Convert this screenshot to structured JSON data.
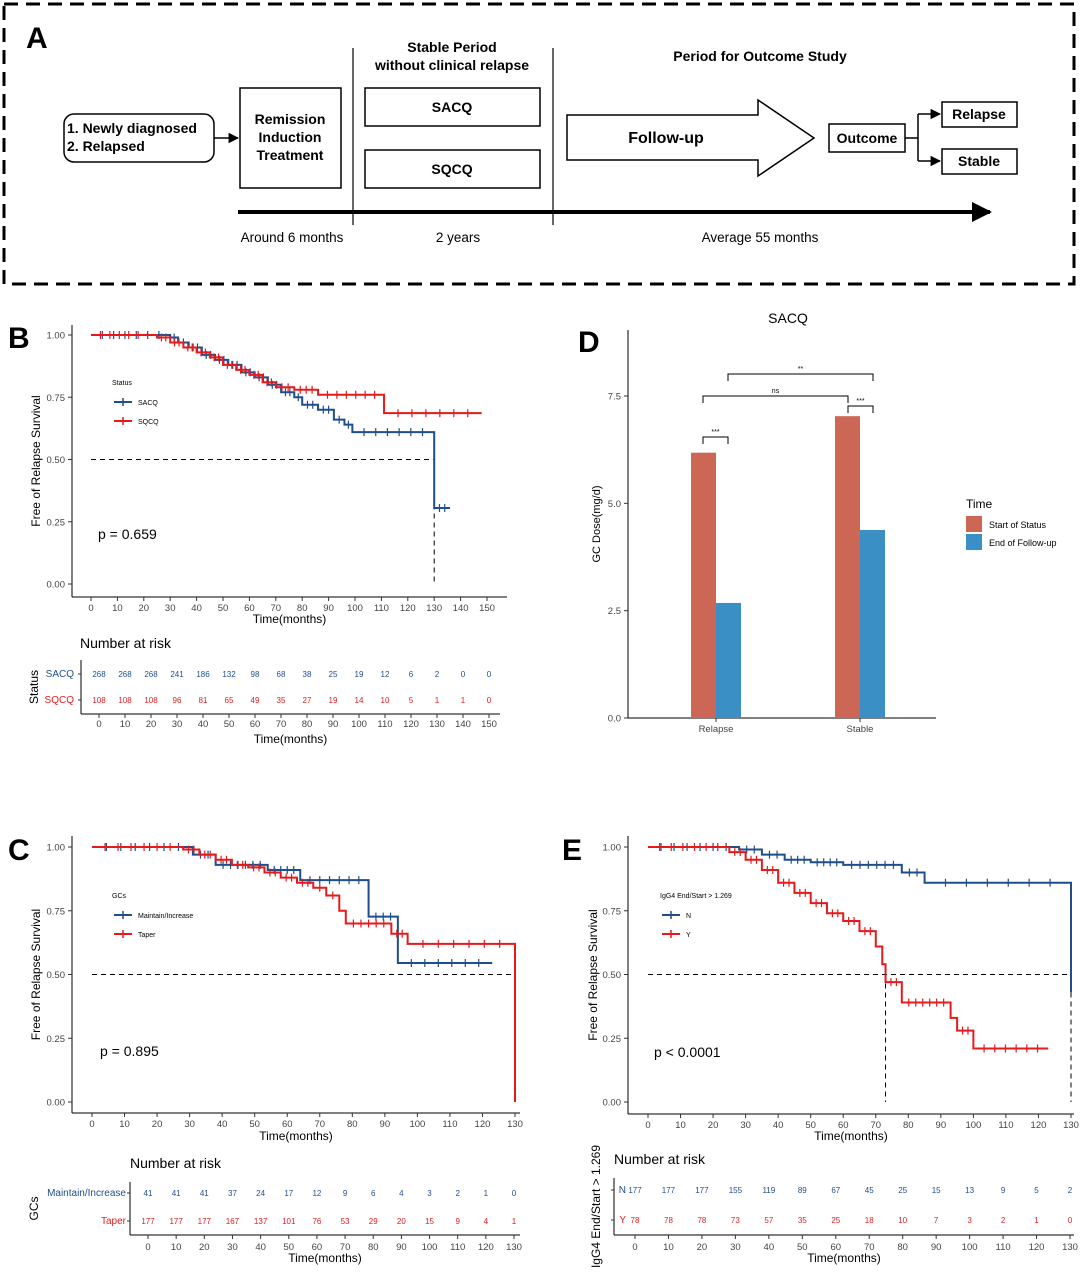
{
  "panelA": {
    "letter": "A",
    "start_line1": "1. Newly diagnosed",
    "start_line2": "2. Relapsed",
    "induction_line1": "Remission",
    "induction_line2": "Induction",
    "induction_line3": "Treatment",
    "stable_head1": "Stable Period",
    "stable_head2": "without clinical relapse",
    "sacq_box": "SACQ",
    "sqcq_box": "SQCQ",
    "outcome_head": "Period for Outcome Study",
    "followup": "Follow-up",
    "outcome": "Outcome",
    "relapse": "Relapse",
    "stable": "Stable",
    "time1": "Around 6 months",
    "time2": "2 years",
    "time3": "Average 55 months"
  },
  "chart_data": [
    {
      "id": "B",
      "type": "line",
      "letter": "B",
      "xlabel": "Time(months)",
      "ylabel": "Free of Relapse Survival",
      "xlim": [
        0,
        150
      ],
      "ylim": [
        0,
        1
      ],
      "xticks": [
        "0",
        "10",
        "20",
        "30",
        "40",
        "50",
        "60",
        "70",
        "80",
        "90",
        "100",
        "110",
        "120",
        "130",
        "140",
        "150"
      ],
      "yticks": [
        "0.00",
        "0.25",
        "0.50",
        "0.75",
        "1.00"
      ],
      "legend_title": "Status",
      "pvalue": "p = 0.659",
      "series": [
        {
          "name": "SACQ",
          "color": "#1f4e8c",
          "steps": [
            [
              0,
              1
            ],
            [
              30,
              0.99
            ],
            [
              33,
              0.97
            ],
            [
              37,
              0.95
            ],
            [
              42,
              0.92
            ],
            [
              47,
              0.9
            ],
            [
              52,
              0.88
            ],
            [
              57,
              0.85
            ],
            [
              62,
              0.83
            ],
            [
              67,
              0.8
            ],
            [
              72,
              0.77
            ],
            [
              77,
              0.75
            ],
            [
              80,
              0.72
            ],
            [
              86,
              0.7
            ],
            [
              92,
              0.66
            ],
            [
              96,
              0.64
            ],
            [
              99,
              0.61
            ],
            [
              130,
              0.61
            ],
            [
              130,
              0.305
            ],
            [
              136,
              0.305
            ]
          ]
        },
        {
          "name": "SQCQ",
          "color": "#e41a1c",
          "steps": [
            [
              0,
              1
            ],
            [
              25,
              0.99
            ],
            [
              30,
              0.97
            ],
            [
              35,
              0.95
            ],
            [
              40,
              0.93
            ],
            [
              45,
              0.91
            ],
            [
              50,
              0.88
            ],
            [
              55,
              0.86
            ],
            [
              60,
              0.84
            ],
            [
              65,
              0.81
            ],
            [
              70,
              0.79
            ],
            [
              77,
              0.78
            ],
            [
              86,
              0.76
            ],
            [
              111,
              0.76
            ],
            [
              111,
              0.686
            ],
            [
              148,
              0.686
            ]
          ]
        }
      ],
      "median_line": {
        "y": 0.5,
        "x": 130
      },
      "risk_title": "Number at risk",
      "risk_label": "Status",
      "risk_rows": [
        {
          "name": "SACQ",
          "color": "#1f4e8c",
          "values": [
            "268",
            "268",
            "268",
            "241",
            "186",
            "132",
            "98",
            "68",
            "38",
            "25",
            "19",
            "12",
            "6",
            "2",
            "0",
            "0"
          ]
        },
        {
          "name": "SQCQ",
          "color": "#e41a1c",
          "values": [
            "108",
            "108",
            "108",
            "96",
            "81",
            "65",
            "49",
            "35",
            "27",
            "19",
            "14",
            "10",
            "5",
            "1",
            "1",
            "0"
          ]
        }
      ]
    },
    {
      "id": "C",
      "type": "line",
      "letter": "C",
      "xlabel": "Time(months)",
      "ylabel": "Free of Relapse Survival",
      "xlim": [
        0,
        130
      ],
      "ylim": [
        0,
        1
      ],
      "xticks": [
        "0",
        "10",
        "20",
        "30",
        "40",
        "50",
        "60",
        "70",
        "80",
        "90",
        "100",
        "110",
        "120",
        "130"
      ],
      "yticks": [
        "0.00",
        "0.25",
        "0.50",
        "0.75",
        "1.00"
      ],
      "legend_title": "GCs",
      "pvalue": "p = 0.895",
      "series": [
        {
          "name": "Maintain/Increase",
          "color": "#1f4e8c",
          "steps": [
            [
              0,
              1
            ],
            [
              31,
              0.97
            ],
            [
              38,
              0.93
            ],
            [
              54,
              0.91
            ],
            [
              64,
              0.87
            ],
            [
              85,
              0.87
            ],
            [
              85,
              0.727
            ],
            [
              94,
              0.727
            ],
            [
              94,
              0.545
            ],
            [
              123,
              0.545
            ]
          ]
        },
        {
          "name": "Taper",
          "color": "#e41a1c",
          "steps": [
            [
              0,
              1
            ],
            [
              28,
              0.99
            ],
            [
              33,
              0.97
            ],
            [
              38,
              0.95
            ],
            [
              43,
              0.93
            ],
            [
              48,
              0.92
            ],
            [
              53,
              0.9
            ],
            [
              58,
              0.88
            ],
            [
              63,
              0.86
            ],
            [
              68,
              0.84
            ],
            [
              72,
              0.81
            ],
            [
              76,
              0.75
            ],
            [
              78,
              0.7
            ],
            [
              92,
              0.66
            ],
            [
              97,
              0.62
            ],
            [
              130,
              0.62
            ],
            [
              130,
              0.0
            ]
          ]
        }
      ],
      "median_line": {
        "y": 0.5,
        "x": 130
      },
      "risk_title": "Number at risk",
      "risk_label": "GCs",
      "risk_rows": [
        {
          "name": "Maintain/Increase",
          "color": "#1f4e8c",
          "values": [
            "41",
            "41",
            "41",
            "37",
            "24",
            "17",
            "12",
            "9",
            "6",
            "4",
            "3",
            "2",
            "1",
            "0"
          ]
        },
        {
          "name": "Taper",
          "color": "#e41a1c",
          "values": [
            "177",
            "177",
            "177",
            "167",
            "137",
            "101",
            "76",
            "53",
            "29",
            "20",
            "15",
            "9",
            "4",
            "1"
          ]
        }
      ]
    },
    {
      "id": "E",
      "type": "line",
      "letter": "E",
      "xlabel": "Time(months)",
      "ylabel": "Free of Relapse Survival",
      "xlim": [
        0,
        130
      ],
      "ylim": [
        0,
        1
      ],
      "xticks": [
        "0",
        "10",
        "20",
        "30",
        "40",
        "50",
        "60",
        "70",
        "80",
        "90",
        "100",
        "110",
        "120",
        "130"
      ],
      "yticks": [
        "0.00",
        "0.25",
        "0.50",
        "0.75",
        "1.00"
      ],
      "legend_title": "IgG4 End/Start > 1.269",
      "pvalue": "p < 0.0001",
      "series": [
        {
          "name": "N",
          "color": "#1f4e8c",
          "steps": [
            [
              0,
              1
            ],
            [
              28,
              0.99
            ],
            [
              35,
              0.97
            ],
            [
              42,
              0.95
            ],
            [
              50,
              0.94
            ],
            [
              60,
              0.93
            ],
            [
              78,
              0.9
            ],
            [
              85,
              0.86
            ],
            [
              130,
              0.86
            ],
            [
              130,
              0.43
            ]
          ]
        },
        {
          "name": "Y",
          "color": "#e41a1c",
          "steps": [
            [
              0,
              1
            ],
            [
              25,
              0.98
            ],
            [
              30,
              0.95
            ],
            [
              35,
              0.91
            ],
            [
              40,
              0.86
            ],
            [
              45,
              0.82
            ],
            [
              50,
              0.78
            ],
            [
              55,
              0.74
            ],
            [
              60,
              0.71
            ],
            [
              65,
              0.67
            ],
            [
              70,
              0.61
            ],
            [
              72,
              0.54
            ],
            [
              73,
              0.47
            ],
            [
              78,
              0.39
            ],
            [
              93,
              0.33
            ],
            [
              95,
              0.28
            ],
            [
              100,
              0.21
            ],
            [
              123,
              0.21
            ]
          ]
        }
      ],
      "median_line": {
        "y": 0.5,
        "x": 73,
        "x2": 130
      },
      "risk_title": "Number at risk",
      "risk_label": "IgG4 End/Start > 1.269",
      "risk_rows": [
        {
          "name": "N",
          "color": "#1f4e8c",
          "values": [
            "177",
            "177",
            "177",
            "155",
            "119",
            "89",
            "67",
            "45",
            "25",
            "15",
            "13",
            "9",
            "5",
            "2"
          ]
        },
        {
          "name": "Y",
          "color": "#e41a1c",
          "values": [
            "78",
            "78",
            "78",
            "73",
            "57",
            "35",
            "25",
            "18",
            "10",
            "7",
            "3",
            "2",
            "1",
            "0"
          ]
        }
      ]
    },
    {
      "id": "D",
      "type": "bar",
      "letter": "D",
      "title": "SACQ",
      "categories": [
        "Relapse",
        "Stable"
      ],
      "series": [
        {
          "name": "Start of Status",
          "color": "#cc6655",
          "values": [
            6.18,
            7.03
          ]
        },
        {
          "name": "End of Follow-up",
          "color": "#3a8fc4",
          "values": [
            2.68,
            4.38
          ]
        }
      ],
      "ylabel": "GC Dose(mg/d)",
      "ylim": [
        0,
        9
      ],
      "yticks": [
        "0.0",
        "2.5",
        "5.0",
        "7.5"
      ],
      "legend_title": "Time",
      "sig": {
        "relapse": "***",
        "stable": "***",
        "top": "**",
        "mid": "ns"
      }
    }
  ]
}
